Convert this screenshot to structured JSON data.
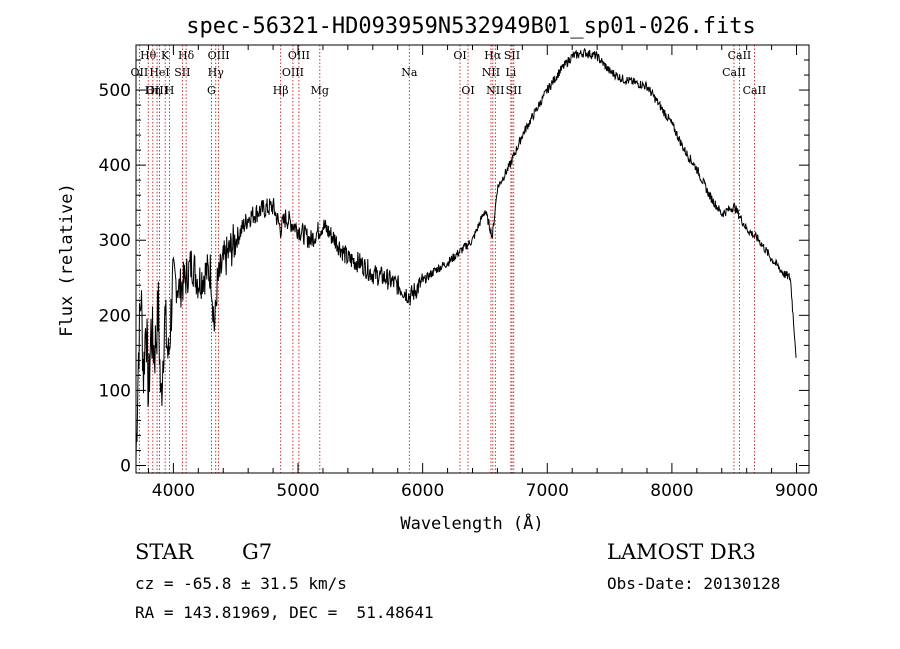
{
  "chart_data": {
    "type": "line",
    "title": "spec-56321-HD093959N532949B01_sp01-026.fits",
    "xlabel": "Wavelength (Å)",
    "ylabel": "Flux (relative)",
    "xlim": [
      3700,
      9100
    ],
    "ylim": [
      -10,
      560
    ],
    "xticks": [
      4000,
      5000,
      6000,
      7000,
      8000,
      9000
    ],
    "yticks": [
      0,
      100,
      200,
      300,
      400,
      500
    ],
    "series": [
      {
        "name": "flux",
        "x": [
          3700,
          3720,
          3740,
          3760,
          3780,
          3800,
          3820,
          3850,
          3880,
          3900,
          3930,
          3960,
          3990,
          4000,
          4050,
          4100,
          4150,
          4200,
          4250,
          4300,
          4330,
          4350,
          4400,
          4500,
          4600,
          4700,
          4800,
          4860,
          4900,
          5000,
          5100,
          5200,
          5300,
          5400,
          5500,
          5600,
          5700,
          5800,
          5900,
          6000,
          6100,
          6200,
          6300,
          6400,
          6500,
          6560,
          6600,
          6700,
          6800,
          6900,
          7000,
          7100,
          7200,
          7300,
          7400,
          7500,
          7600,
          7700,
          7800,
          7900,
          8000,
          8100,
          8200,
          8300,
          8400,
          8500,
          8550,
          8600,
          8700,
          8800,
          8900,
          8950,
          9000
        ],
        "values": [
          10,
          150,
          230,
          120,
          200,
          90,
          180,
          150,
          210,
          80,
          200,
          140,
          230,
          250,
          235,
          250,
          270,
          245,
          255,
          260,
          180,
          240,
          270,
          300,
          330,
          340,
          345,
          315,
          330,
          315,
          300,
          320,
          300,
          275,
          270,
          255,
          250,
          240,
          225,
          245,
          260,
          270,
          285,
          300,
          340,
          305,
          370,
          400,
          440,
          470,
          500,
          525,
          545,
          550,
          545,
          525,
          515,
          510,
          505,
          480,
          455,
          420,
          395,
          360,
          335,
          345,
          330,
          315,
          300,
          275,
          255,
          250,
          140
        ]
      }
    ],
    "lines": [
      {
        "name": "Hθ",
        "wave": 3798,
        "row": 0
      },
      {
        "name": "OII",
        "wave": 3727,
        "row": 1
      },
      {
        "name": "OIII",
        "wave": 3869,
        "row": 2
      },
      {
        "name": "K",
        "wave": 3934,
        "row": 0
      },
      {
        "name": "H",
        "wave": 3969,
        "row": 2
      },
      {
        "name": "HeI",
        "wave": 3889,
        "row": 1
      },
      {
        "name": "Hη",
        "wave": 3835,
        "row": 2
      },
      {
        "name": "SII",
        "wave": 4072,
        "row": 1
      },
      {
        "name": "Hδ",
        "wave": 4102,
        "row": 0
      },
      {
        "name": "OIII",
        "wave": 4363,
        "row": 0
      },
      {
        "name": "Hγ",
        "wave": 4340,
        "row": 1
      },
      {
        "name": "G",
        "wave": 4305,
        "row": 2
      },
      {
        "name": "Hβ",
        "wave": 4861,
        "row": 2
      },
      {
        "name": "OIII",
        "wave": 4959,
        "row": 1
      },
      {
        "name": "OIII",
        "wave": 5007,
        "row": 0
      },
      {
        "name": "Mg",
        "wave": 5175,
        "row": 2
      },
      {
        "name": "Na",
        "wave": 5893,
        "row": 1
      },
      {
        "name": "OI",
        "wave": 6300,
        "row": 0
      },
      {
        "name": "OI",
        "wave": 6364,
        "row": 2
      },
      {
        "name": "Hα",
        "wave": 6563,
        "row": 0
      },
      {
        "name": "NII",
        "wave": 6548,
        "row": 1
      },
      {
        "name": "NII",
        "wave": 6583,
        "row": 2
      },
      {
        "name": "SII",
        "wave": 6717,
        "row": 0
      },
      {
        "name": "Li",
        "wave": 6708,
        "row": 1
      },
      {
        "name": "SII",
        "wave": 6731,
        "row": 2
      },
      {
        "name": "CaII",
        "wave": 8542,
        "row": 0
      },
      {
        "name": "CaII",
        "wave": 8498,
        "row": 1
      },
      {
        "name": "CaII",
        "wave": 8662,
        "row": 2
      }
    ]
  },
  "info": {
    "object_class": "STAR",
    "subclass": "G7",
    "survey": "LAMOST DR3",
    "cz": "cz = -65.8 ± 31.5 km/s",
    "obs_date": "Obs-Date: 20130128",
    "coords": "RA = 143.81969, DEC =  51.48641"
  }
}
